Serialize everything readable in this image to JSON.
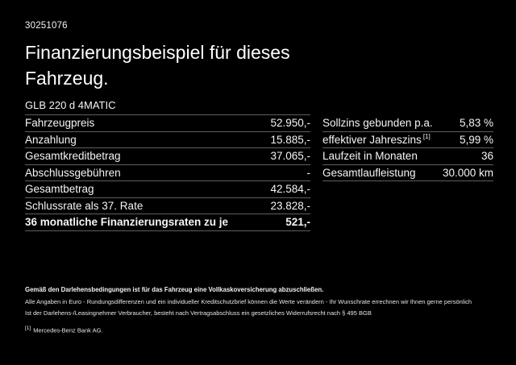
{
  "colors": {
    "background": "#000000",
    "text": "#f5f5f5",
    "divider": "#5f5f5f"
  },
  "header": {
    "offer_id": "30251076",
    "title": "Finanzierungsbeispiel für dieses Fahrzeug.",
    "vehicle_model": "GLB 220 d 4MATIC"
  },
  "financing_table": {
    "rows": [
      {
        "label": "Fahrzeugpreis",
        "value": "52.950,-"
      },
      {
        "label": "Anzahlung",
        "value": "15.885,-"
      },
      {
        "label": "Gesamtkreditbetrag",
        "value": "37.065,-"
      },
      {
        "label": "Abschlussgebühren",
        "value": "-"
      },
      {
        "label": "Gesamtbetrag",
        "value": "42.584,-"
      },
      {
        "label": "Schlussrate als 37. Rate",
        "value": "23.828,-"
      },
      {
        "label": "36 monatliche Finanzierungsraten zu je",
        "value": "521,-"
      }
    ]
  },
  "conditions_table": {
    "rows": [
      {
        "label": "Sollzins gebunden p.a.",
        "sup": "",
        "value": "5,83 %"
      },
      {
        "label": "effektiver Jahreszins",
        "sup": "[1]",
        "value": "5,99 %"
      },
      {
        "label": "Laufzeit in Monaten",
        "sup": "",
        "value": "36"
      },
      {
        "label": "Gesamtlaufleistung",
        "sup": "",
        "value": "30.000 km"
      }
    ]
  },
  "footer": {
    "bold_note": "Gemäß den Darlehensbedingungen ist für das Fahrzeug eine Vollkaskoversicherung abzuschließen.",
    "note_line1": "Alle Angaben in Euro - Rundungsdifferenzen und ein individueller Kreditschutzbrief können die Werte verändern - Ihr Wunschrate errechnen wir Ihnen gerne persönlich",
    "note_line2": "Ist der Darlehens-/Leasingnehmer Verbraucher, besteht nach Vertragsabschluss ein gesetzliches Widerrufsrecht nach § 495 BGB",
    "footnote_marker": "[1]",
    "footnote_text": "Mercedes-Benz Bank AG."
  }
}
